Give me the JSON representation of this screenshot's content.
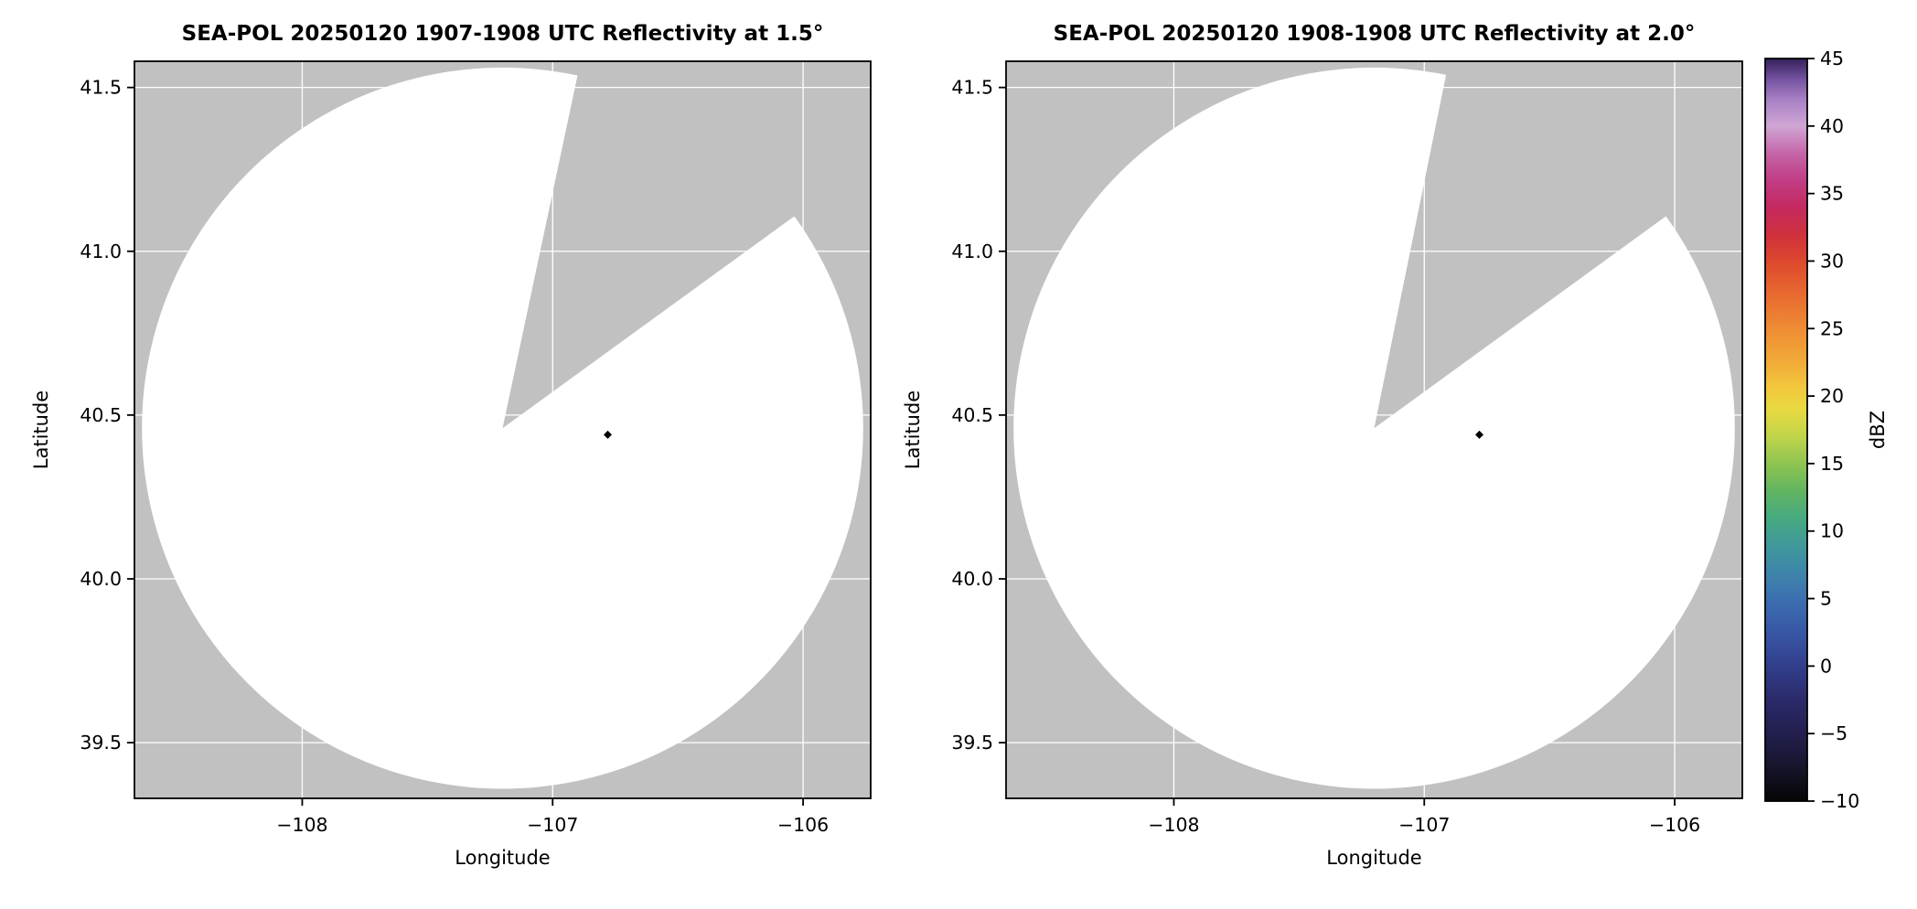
{
  "figure": {
    "background": "#ffffff",
    "colors": {
      "panel_bg": "#c1c1c1",
      "gridline": "#ffffff",
      "coverage": "#ffffff",
      "spine": "#000000",
      "text": "#000000"
    },
    "colorbar": {
      "label": "dBZ",
      "min": -10,
      "max": 45,
      "ticks": [
        45,
        40,
        35,
        30,
        25,
        20,
        15,
        10,
        5,
        0,
        -5,
        -10
      ],
      "tick_labels": [
        "45",
        "40",
        "35",
        "30",
        "25",
        "20",
        "15",
        "10",
        "5",
        "0",
        "−5",
        "−10"
      ],
      "stops": [
        {
          "value": -10,
          "color": "#050505"
        },
        {
          "value": -7.5,
          "color": "#16152b"
        },
        {
          "value": -5,
          "color": "#221f4e"
        },
        {
          "value": -2.5,
          "color": "#2b2a6a"
        },
        {
          "value": 0,
          "color": "#323f8c"
        },
        {
          "value": 2.5,
          "color": "#3857a5"
        },
        {
          "value": 5,
          "color": "#3c70b0"
        },
        {
          "value": 7,
          "color": "#3e86a9"
        },
        {
          "value": 9,
          "color": "#40999a"
        },
        {
          "value": 11,
          "color": "#47aa80"
        },
        {
          "value": 13,
          "color": "#62b560"
        },
        {
          "value": 15,
          "color": "#8fc451"
        },
        {
          "value": 17,
          "color": "#c0d44a"
        },
        {
          "value": 19,
          "color": "#e8da41"
        },
        {
          "value": 20.5,
          "color": "#f2c93c"
        },
        {
          "value": 22.5,
          "color": "#f1ab38"
        },
        {
          "value": 25,
          "color": "#ee8c34"
        },
        {
          "value": 27.5,
          "color": "#e86a30"
        },
        {
          "value": 30,
          "color": "#dd482e"
        },
        {
          "value": 32,
          "color": "#cf303d"
        },
        {
          "value": 34,
          "color": "#c42a60"
        },
        {
          "value": 36,
          "color": "#c13d85"
        },
        {
          "value": 38,
          "color": "#c566a8"
        },
        {
          "value": 40,
          "color": "#cfa6d4"
        },
        {
          "value": 42,
          "color": "#a77fc4"
        },
        {
          "value": 43.5,
          "color": "#7452a0"
        },
        {
          "value": 45,
          "color": "#33205a"
        }
      ]
    }
  },
  "chart_data": [
    {
      "type": "radar_ppi",
      "title": "SEA-POL 20250120 1907-1908 UTC Reflectivity at 1.5°",
      "xlabel": "Longitude",
      "ylabel": "Latitude",
      "xlim": [
        -108.67,
        -105.73
      ],
      "ylim": [
        39.33,
        41.58
      ],
      "x_ticks": [
        -108,
        -107,
        -106
      ],
      "x_tick_labels": [
        "−108",
        "−107",
        "−106"
      ],
      "y_ticks": [
        39.5,
        40.0,
        40.5,
        41.0,
        41.5
      ],
      "y_tick_labels": [
        "39.5",
        "40.0",
        "40.5",
        "41.0",
        "41.5"
      ],
      "grid": true,
      "radar": {
        "center_lon": -107.2,
        "center_lat": 40.46,
        "range_deg_lon": 1.44
      },
      "blocked_sector_deg": [
        12,
        54
      ],
      "reflectivity_marker": {
        "lon": -106.78,
        "lat": 40.44,
        "color": "#000000"
      }
    },
    {
      "type": "radar_ppi",
      "title": "SEA-POL 20250120 1908-1908 UTC Reflectivity at 2.0°",
      "xlabel": "Longitude",
      "ylabel": "Latitude",
      "xlim": [
        -108.67,
        -105.73
      ],
      "ylim": [
        39.33,
        41.58
      ],
      "x_ticks": [
        -108,
        -107,
        -106
      ],
      "x_tick_labels": [
        "−108",
        "−107",
        "−106"
      ],
      "y_ticks": [
        39.5,
        40.0,
        40.5,
        41.0,
        41.5
      ],
      "y_tick_labels": [
        "39.5",
        "40.0",
        "40.5",
        "41.0",
        "41.5"
      ],
      "grid": true,
      "radar": {
        "center_lon": -107.2,
        "center_lat": 40.46,
        "range_deg_lon": 1.44
      },
      "blocked_sector_deg": [
        11.5,
        54
      ],
      "reflectivity_marker": {
        "lon": -106.78,
        "lat": 40.44,
        "color": "#000000"
      }
    }
  ]
}
